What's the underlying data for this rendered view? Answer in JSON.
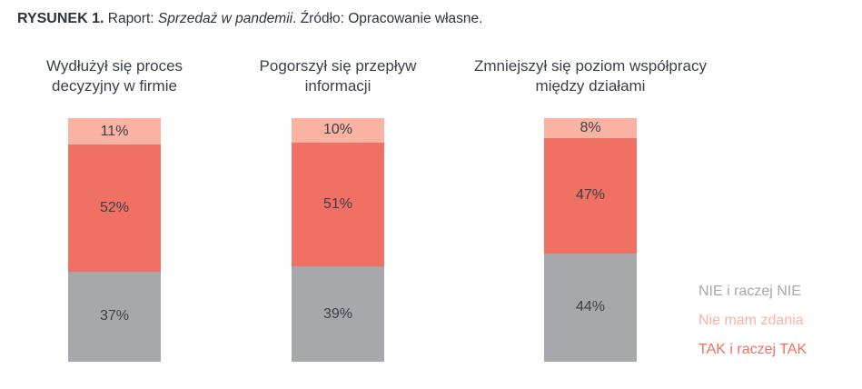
{
  "caption": {
    "label": "RYSUNEK 1.",
    "prefix": "Raport: ",
    "report": "Sprzedaż w pandemii",
    "source": ". Źródło: Opracowanie własne."
  },
  "chart_data": {
    "type": "bar",
    "stacked": true,
    "categories": [
      "Wydłużył się proces decyzyjny w firmie",
      "Pogorszył się przepływ informacji",
      "Zmniejszył się poziom współpracy między działami"
    ],
    "series": [
      {
        "name": "NIE i raczej NIE",
        "values": [
          37,
          39,
          44
        ],
        "labels": [
          "37%",
          "39%",
          "44%"
        ],
        "color": "#a7a8ac"
      },
      {
        "name": "TAK i raczej TAK",
        "values": [
          52,
          51,
          47
        ],
        "labels": [
          "52%",
          "51%",
          "47%"
        ],
        "color": "#f07063"
      },
      {
        "name": "Nie mam zdania",
        "values": [
          11,
          10,
          8
        ],
        "labels": [
          "11%",
          "10%",
          "8%"
        ],
        "color": "#f9b3a2"
      }
    ],
    "titles": [
      [
        "Wydłużył się proces",
        "decyzyjny w firmie"
      ],
      [
        "Pogorszył się przepływ",
        "informacji"
      ],
      [
        "Zmniejszył się poziom współpracy",
        "między działami"
      ]
    ],
    "legend": [
      {
        "label": "NIE i raczej NIE",
        "color": "#a7a8ac"
      },
      {
        "label": "Nie mam zdania",
        "color": "#f9b3a2"
      },
      {
        "label": "TAK i raczej TAK",
        "color": "#f07063"
      }
    ],
    "legend_position": "bottom-right"
  }
}
